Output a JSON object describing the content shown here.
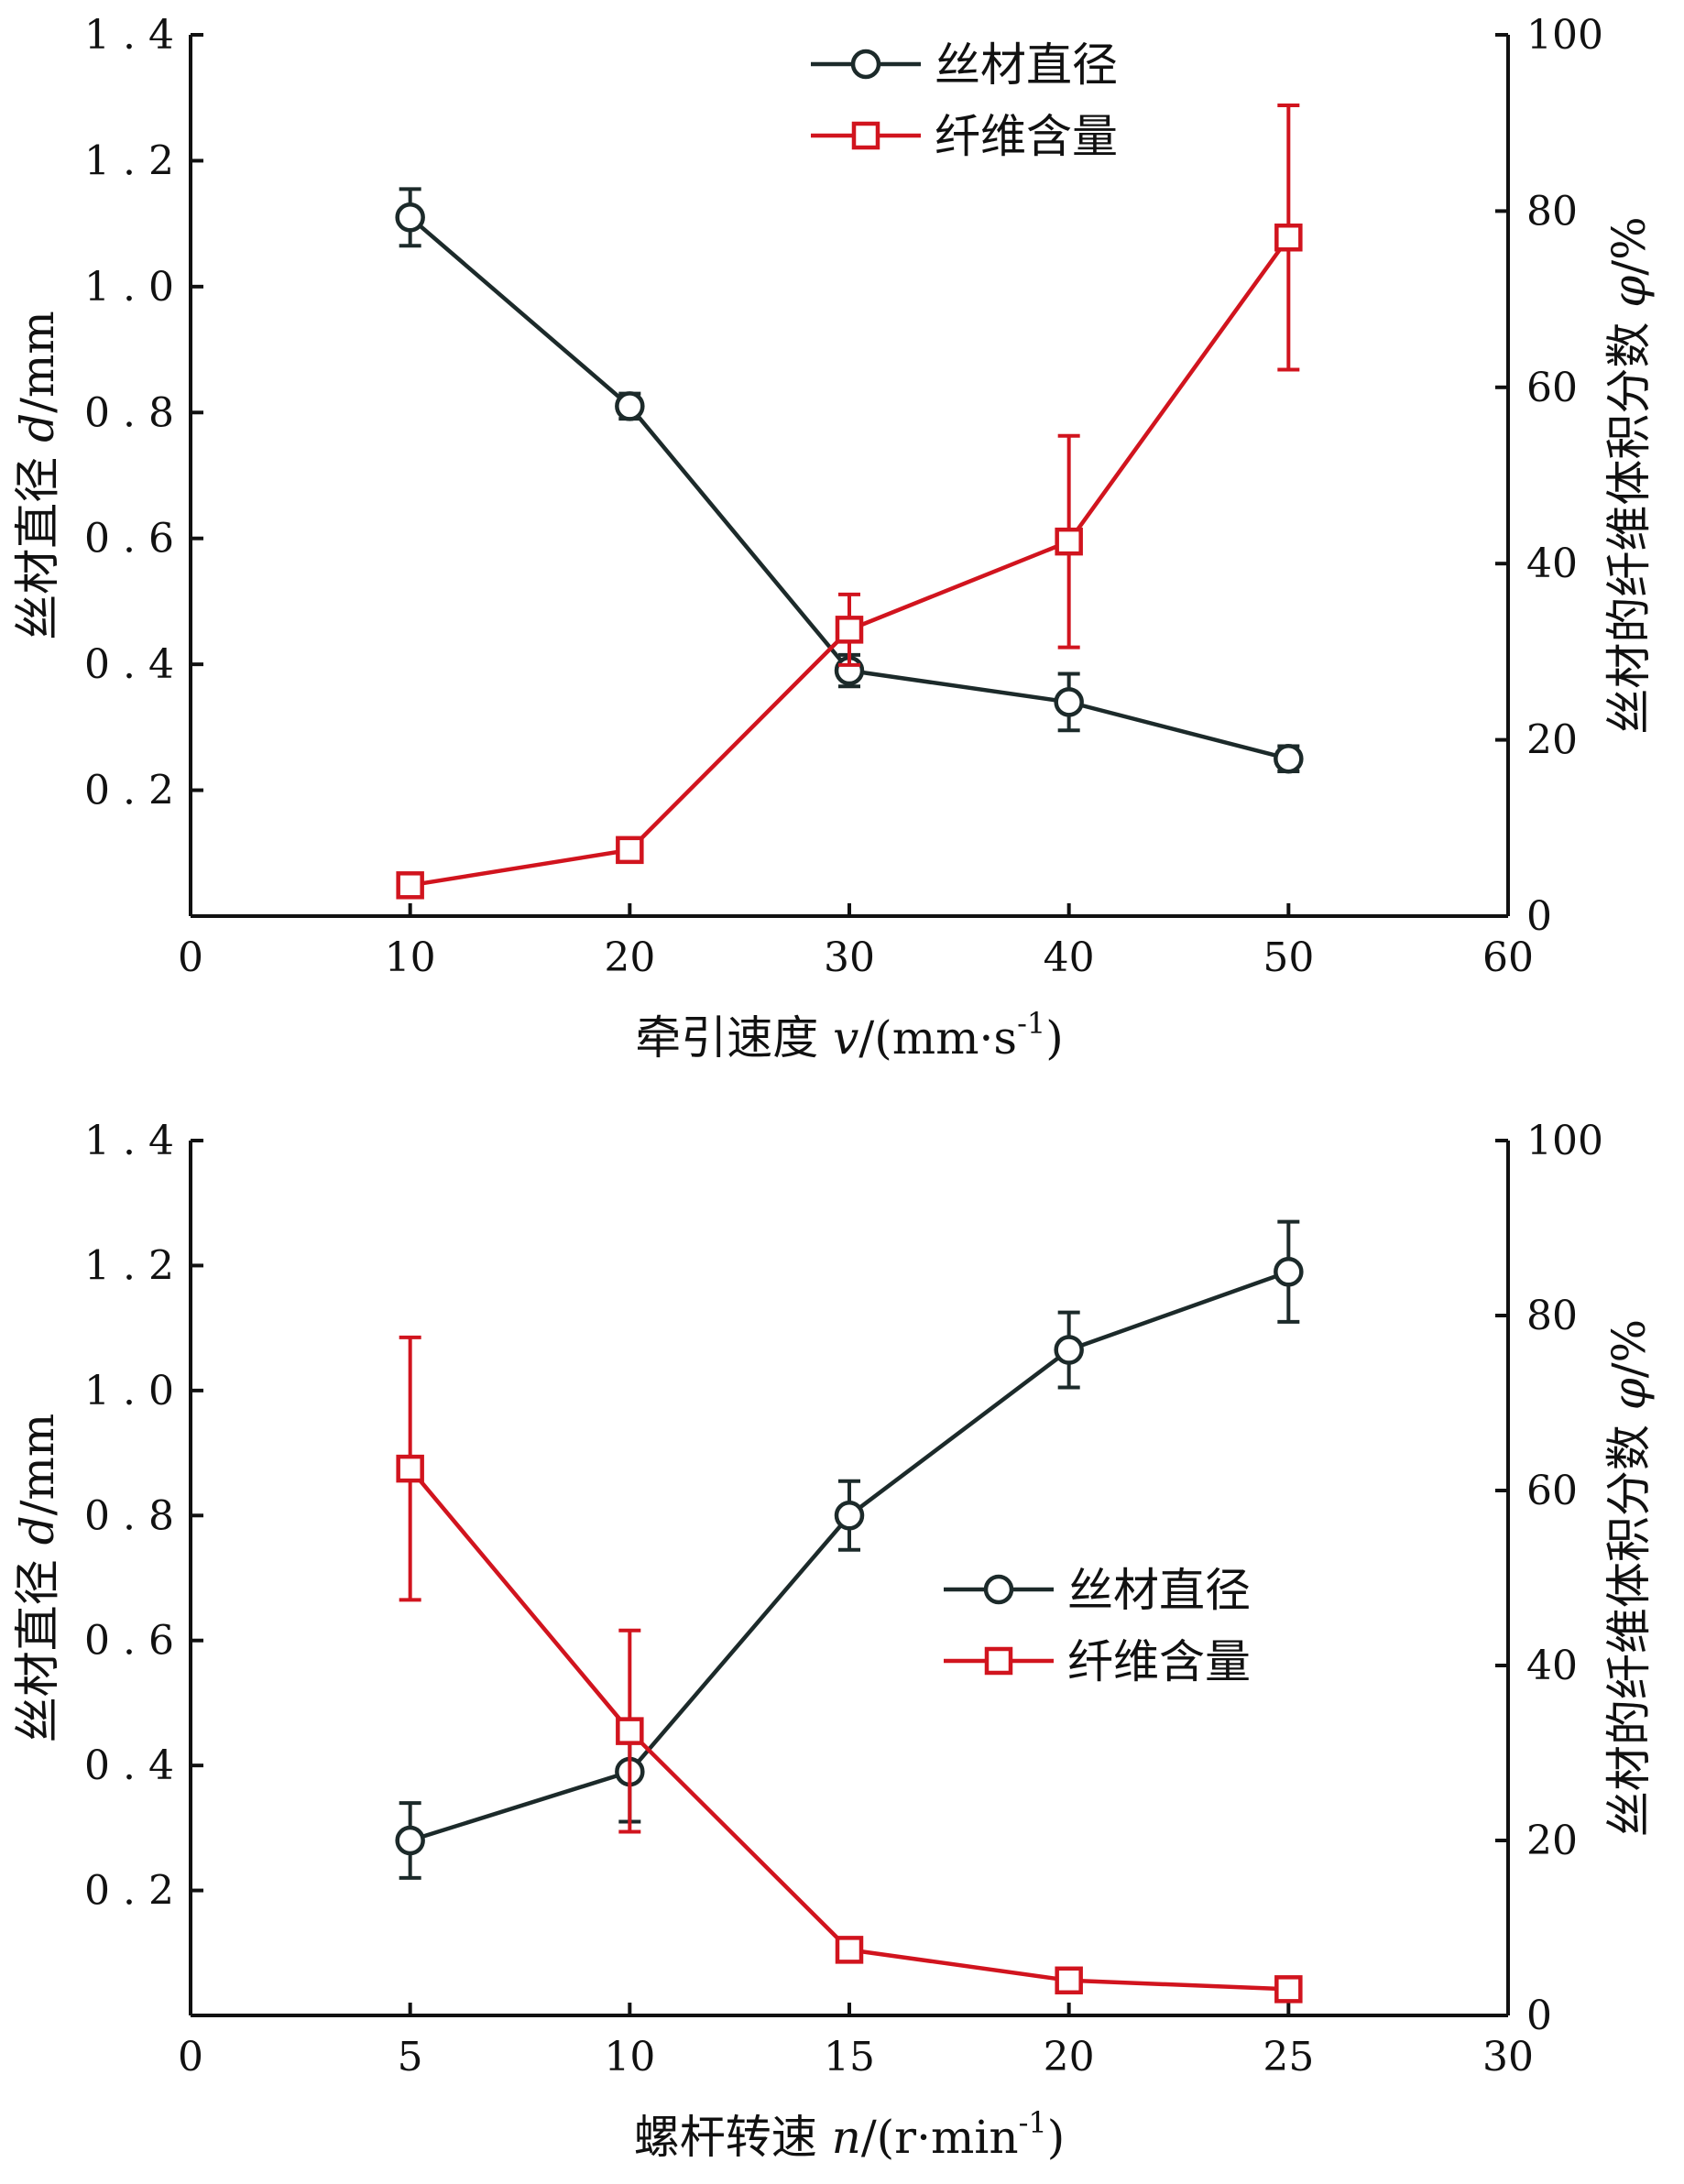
{
  "colors": {
    "diameter": "#1c2a2a",
    "fiber": "#d1141e",
    "axis": "#111111"
  },
  "chart_data": [
    {
      "type": "line",
      "xlabel": "牵引速度 v/(mm·s⁻¹)",
      "ylabel_left": "丝材直径 d/mm",
      "ylabel_right": "丝材的纤维体积分数 φ/%",
      "xlim": [
        0,
        60
      ],
      "xticks": [
        0,
        10,
        20,
        30,
        40,
        50,
        60
      ],
      "ylim_left": [
        0,
        1.4
      ],
      "yticks_left": [
        0.2,
        0.4,
        0.6,
        0.8,
        1.0,
        1.2,
        1.4
      ],
      "ylim_right": [
        0,
        100
      ],
      "yticks_right": [
        0,
        20,
        40,
        60,
        80,
        100
      ],
      "legend_position": "top-center",
      "series": [
        {
          "name": "丝材直径",
          "axis": "left",
          "marker": "circle",
          "x": [
            10,
            20,
            30,
            40,
            50
          ],
          "y": [
            1.11,
            0.81,
            0.39,
            0.34,
            0.25
          ],
          "error": [
            0.045,
            0.02,
            0.025,
            0.045,
            0.02
          ]
        },
        {
          "name": "纤维含量",
          "axis": "right",
          "marker": "square",
          "x": [
            10,
            20,
            30,
            40,
            50
          ],
          "y": [
            3.5,
            7.5,
            32.5,
            42.5,
            77
          ],
          "error": [
            1,
            1,
            4,
            12,
            15
          ]
        }
      ]
    },
    {
      "type": "line",
      "xlabel": "螺杆转速 n/(r·min⁻¹)",
      "ylabel_left": "丝材直径 d/mm",
      "ylabel_right": "丝材的纤维体积分数 φ/%",
      "xlim": [
        0,
        30
      ],
      "xticks": [
        0,
        5,
        10,
        15,
        20,
        25,
        30
      ],
      "ylim_left": [
        0,
        1.4
      ],
      "yticks_left": [
        0.2,
        0.4,
        0.6,
        0.8,
        1.0,
        1.2,
        1.4
      ],
      "ylim_right": [
        0,
        100
      ],
      "yticks_right": [
        0,
        20,
        40,
        60,
        80,
        100
      ],
      "legend_position": "center-right",
      "series": [
        {
          "name": "丝材直径",
          "axis": "left",
          "marker": "circle",
          "x": [
            5,
            10,
            15,
            20,
            25
          ],
          "y": [
            0.28,
            0.39,
            0.8,
            1.065,
            1.19
          ],
          "error": [
            0.06,
            0.08,
            0.055,
            0.06,
            0.08
          ]
        },
        {
          "name": "纤维含量",
          "axis": "right",
          "marker": "square",
          "x": [
            5,
            10,
            15,
            20,
            25
          ],
          "y": [
            62.5,
            32.5,
            7.5,
            4,
            3
          ],
          "error": [
            15,
            11.5,
            0.5,
            0.5,
            0.5
          ]
        }
      ]
    }
  ]
}
